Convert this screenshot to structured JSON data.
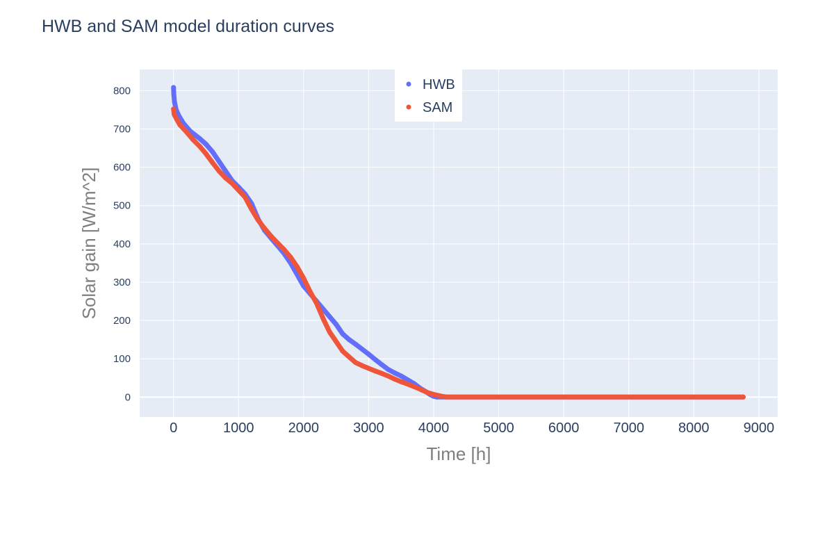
{
  "chart_data": {
    "type": "scatter",
    "title": "HWB and SAM model duration curves",
    "xlabel": "Time [h]",
    "ylabel": "Solar gain [W/m^2]",
    "xlim": [
      -520,
      9290
    ],
    "ylim": [
      -52,
      855
    ],
    "x_ticks": [
      0,
      1000,
      2000,
      3000,
      4000,
      5000,
      6000,
      7000,
      8000,
      9000
    ],
    "y_ticks": [
      0,
      100,
      200,
      300,
      400,
      500,
      600,
      700,
      800
    ],
    "grid": true,
    "legend_position": "top-center",
    "x_end": 8760,
    "series": [
      {
        "name": "HWB",
        "color": "#636efa",
        "points": [
          [
            0,
            808
          ],
          [
            5,
            790
          ],
          [
            15,
            770
          ],
          [
            40,
            750
          ],
          [
            80,
            735
          ],
          [
            150,
            715
          ],
          [
            250,
            695
          ],
          [
            400,
            675
          ],
          [
            500,
            660
          ],
          [
            600,
            640
          ],
          [
            700,
            615
          ],
          [
            800,
            590
          ],
          [
            900,
            565
          ],
          [
            1000,
            548
          ],
          [
            1100,
            530
          ],
          [
            1200,
            505
          ],
          [
            1300,
            465
          ],
          [
            1400,
            435
          ],
          [
            1500,
            415
          ],
          [
            1600,
            395
          ],
          [
            1700,
            375
          ],
          [
            1800,
            350
          ],
          [
            1900,
            320
          ],
          [
            2000,
            290
          ],
          [
            2100,
            270
          ],
          [
            2200,
            250
          ],
          [
            2300,
            230
          ],
          [
            2400,
            210
          ],
          [
            2500,
            190
          ],
          [
            2600,
            165
          ],
          [
            2700,
            150
          ],
          [
            2800,
            138
          ],
          [
            2900,
            125
          ],
          [
            3000,
            112
          ],
          [
            3100,
            98
          ],
          [
            3200,
            85
          ],
          [
            3300,
            72
          ],
          [
            3400,
            63
          ],
          [
            3500,
            55
          ],
          [
            3600,
            45
          ],
          [
            3700,
            35
          ],
          [
            3800,
            22
          ],
          [
            3900,
            12
          ],
          [
            3950,
            6
          ],
          [
            4000,
            2
          ],
          [
            4050,
            0
          ],
          [
            4150,
            0
          ]
        ]
      },
      {
        "name": "SAM",
        "color": "#ef553b",
        "points": [
          [
            0,
            752
          ],
          [
            10,
            738
          ],
          [
            50,
            725
          ],
          [
            100,
            710
          ],
          [
            200,
            692
          ],
          [
            300,
            672
          ],
          [
            400,
            655
          ],
          [
            500,
            635
          ],
          [
            600,
            612
          ],
          [
            700,
            590
          ],
          [
            800,
            572
          ],
          [
            900,
            558
          ],
          [
            1000,
            540
          ],
          [
            1100,
            522
          ],
          [
            1200,
            490
          ],
          [
            1300,
            462
          ],
          [
            1400,
            440
          ],
          [
            1500,
            420
          ],
          [
            1600,
            402
          ],
          [
            1700,
            385
          ],
          [
            1800,
            365
          ],
          [
            1900,
            340
          ],
          [
            2000,
            310
          ],
          [
            2100,
            275
          ],
          [
            2200,
            245
          ],
          [
            2300,
            205
          ],
          [
            2400,
            170
          ],
          [
            2500,
            145
          ],
          [
            2600,
            120
          ],
          [
            2700,
            105
          ],
          [
            2800,
            90
          ],
          [
            2900,
            82
          ],
          [
            3000,
            75
          ],
          [
            3100,
            68
          ],
          [
            3200,
            62
          ],
          [
            3300,
            55
          ],
          [
            3400,
            47
          ],
          [
            3500,
            40
          ],
          [
            3600,
            34
          ],
          [
            3700,
            27
          ],
          [
            3800,
            20
          ],
          [
            3900,
            12
          ],
          [
            4000,
            7
          ],
          [
            4100,
            3
          ],
          [
            4200,
            0
          ],
          [
            4300,
            0
          ]
        ]
      }
    ]
  }
}
